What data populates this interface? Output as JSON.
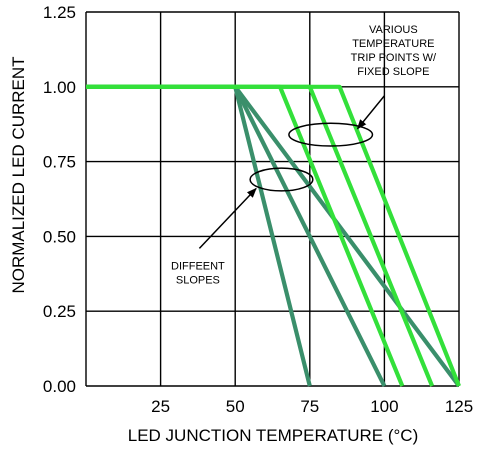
{
  "chart_data": {
    "type": "line",
    "title": "",
    "xlabel": "LED JUNCTION TEMPERATURE (°C)",
    "ylabel": "NORMALIZED LED CURRENT",
    "xlim": [
      0,
      125
    ],
    "ylim": [
      0,
      1.25
    ],
    "x_ticks": [
      "25",
      "50",
      "75",
      "100",
      "125"
    ],
    "x_tick_values": [
      25,
      50,
      75,
      100,
      125
    ],
    "y_ticks": [
      "0.00",
      "0.25",
      "0.50",
      "0.75",
      "1.00",
      "1.25"
    ],
    "y_tick_values": [
      0,
      0.25,
      0.5,
      0.75,
      1.0,
      1.25
    ],
    "grid": true,
    "legend": "none",
    "colors": {
      "different_slopes": "#3a8f6b",
      "trip_points": "#33e03a",
      "grid": "#000000"
    },
    "series": [
      {
        "group": "different_slopes",
        "x": [
          0,
          50,
          75
        ],
        "y": [
          1.0,
          1.0,
          0.0
        ]
      },
      {
        "group": "different_slopes",
        "x": [
          0,
          50,
          100
        ],
        "y": [
          1.0,
          1.0,
          0.0
        ]
      },
      {
        "group": "different_slopes",
        "x": [
          0,
          50,
          125
        ],
        "y": [
          1.0,
          1.0,
          0.0
        ]
      },
      {
        "group": "trip_points",
        "x": [
          0,
          65,
          106
        ],
        "y": [
          1.0,
          1.0,
          0.0
        ]
      },
      {
        "group": "trip_points",
        "x": [
          0,
          75,
          116
        ],
        "y": [
          1.0,
          1.0,
          0.0
        ]
      },
      {
        "group": "trip_points",
        "x": [
          0,
          85,
          125
        ],
        "y": [
          1.0,
          1.0,
          0.0
        ]
      }
    ],
    "annotations": [
      {
        "lines": [
          "VARIOUS",
          "TEMPERATURE",
          "TRIP POINTS W/",
          "FIXED SLOPE"
        ],
        "ellipse_center": [
          82,
          0.84
        ],
        "ellipse_size": [
          28,
          0.076
        ],
        "text_anchor": [
          103,
          1.18
        ],
        "arrow_from": [
          100,
          0.97
        ],
        "arrow_to": [
          91,
          0.86
        ]
      },
      {
        "lines": [
          "DIFFEENT",
          "SLOPES"
        ],
        "ellipse_center": [
          65.5,
          0.69
        ],
        "ellipse_size": [
          21,
          0.076
        ],
        "text_anchor": [
          37.5,
          0.39
        ],
        "arrow_from": [
          38,
          0.46
        ],
        "arrow_to": [
          57,
          0.66
        ]
      }
    ]
  }
}
